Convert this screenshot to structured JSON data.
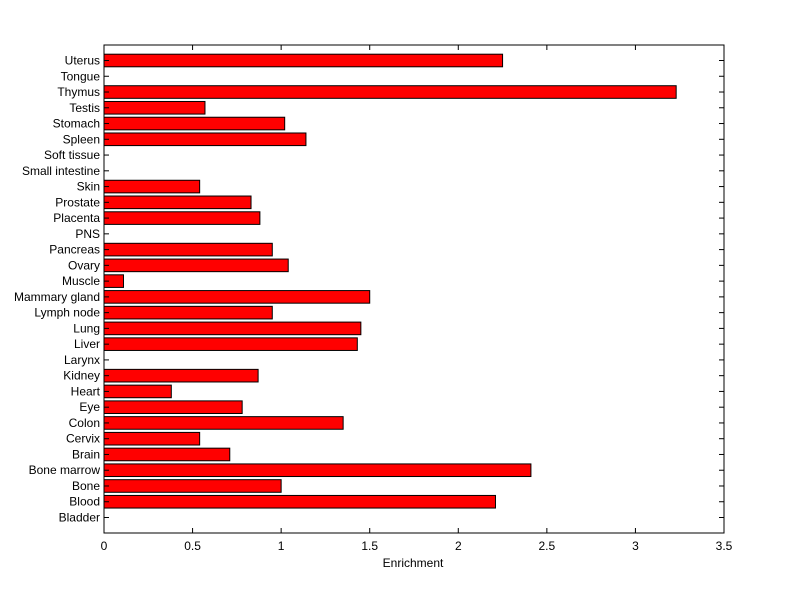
{
  "chart_data": {
    "type": "bar",
    "orientation": "horizontal",
    "title": "",
    "xlabel": "Enrichment",
    "ylabel": "",
    "xlim": [
      0,
      3.5
    ],
    "xticks": [
      0,
      0.5,
      1,
      1.5,
      2,
      2.5,
      3,
      3.5
    ],
    "xtick_labels": [
      "0",
      "0.5",
      "1",
      "1.5",
      "2",
      "2.5",
      "3",
      "3.5"
    ],
    "grid": false,
    "legend": "none",
    "bar_color": "#ff0000",
    "bar_edge_color": "#000000",
    "categories": [
      "Bladder",
      "Blood",
      "Bone",
      "Bone marrow",
      "Brain",
      "Cervix",
      "Colon",
      "Eye",
      "Heart",
      "Kidney",
      "Larynx",
      "Liver",
      "Lung",
      "Lymph node",
      "Mammary gland",
      "Muscle",
      "Ovary",
      "Pancreas",
      "PNS",
      "Placenta",
      "Prostate",
      "Skin",
      "Small intestine",
      "Soft tissue",
      "Spleen",
      "Stomach",
      "Testis",
      "Thymus",
      "Tongue",
      "Uterus"
    ],
    "values": [
      0,
      2.21,
      1.0,
      2.41,
      0.71,
      0.54,
      1.35,
      0.78,
      0.38,
      0.87,
      0,
      1.43,
      1.45,
      0.95,
      1.5,
      0.11,
      1.04,
      0.95,
      0,
      0.88,
      0.83,
      0.54,
      0,
      0,
      1.14,
      1.02,
      0.57,
      3.23,
      0,
      2.25
    ]
  }
}
